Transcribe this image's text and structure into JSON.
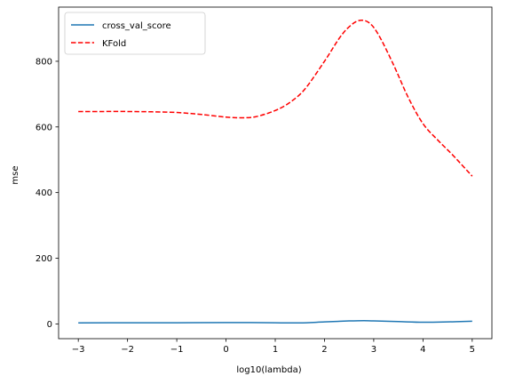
{
  "chart_data": {
    "type": "line",
    "title": "",
    "xlabel": "log10(lambda)",
    "ylabel": "mse",
    "xlim": [
      -3.4,
      5.4
    ],
    "ylim": [
      -45,
      965
    ],
    "xticks": [
      -3,
      -2,
      -1,
      0,
      1,
      2,
      3,
      4,
      5
    ],
    "yticks": [
      0,
      200,
      400,
      600,
      800
    ],
    "grid": false,
    "legend_position": "top-left",
    "series": [
      {
        "name": "cross_val_score",
        "color": "#1f77b4",
        "style": "solid",
        "x": [
          -3,
          -2,
          -1,
          0,
          0.5,
          1,
          1.5,
          2,
          2.5,
          2.8,
          3,
          3.5,
          4,
          4.5,
          5
        ],
        "y": [
          3,
          3.5,
          3.5,
          4,
          4,
          3.5,
          3,
          6,
          9,
          10,
          9,
          7,
          5,
          6,
          8
        ]
      },
      {
        "name": "KFold",
        "color": "#ff0000",
        "style": "dashed",
        "x": [
          -3,
          -2.5,
          -2,
          -1.5,
          -1,
          -0.5,
          0,
          0.3,
          0.6,
          1,
          1.3,
          1.6,
          2,
          2.3,
          2.5,
          2.7,
          2.9,
          3.1,
          3.4,
          3.7,
          4,
          4.3,
          4.6,
          5
        ],
        "y": [
          647,
          647,
          647,
          646,
          644,
          638,
          630,
          628,
          631,
          650,
          675,
          715,
          800,
          870,
          905,
          924,
          918,
          880,
          790,
          690,
          610,
          560,
          515,
          450
        ]
      }
    ]
  }
}
